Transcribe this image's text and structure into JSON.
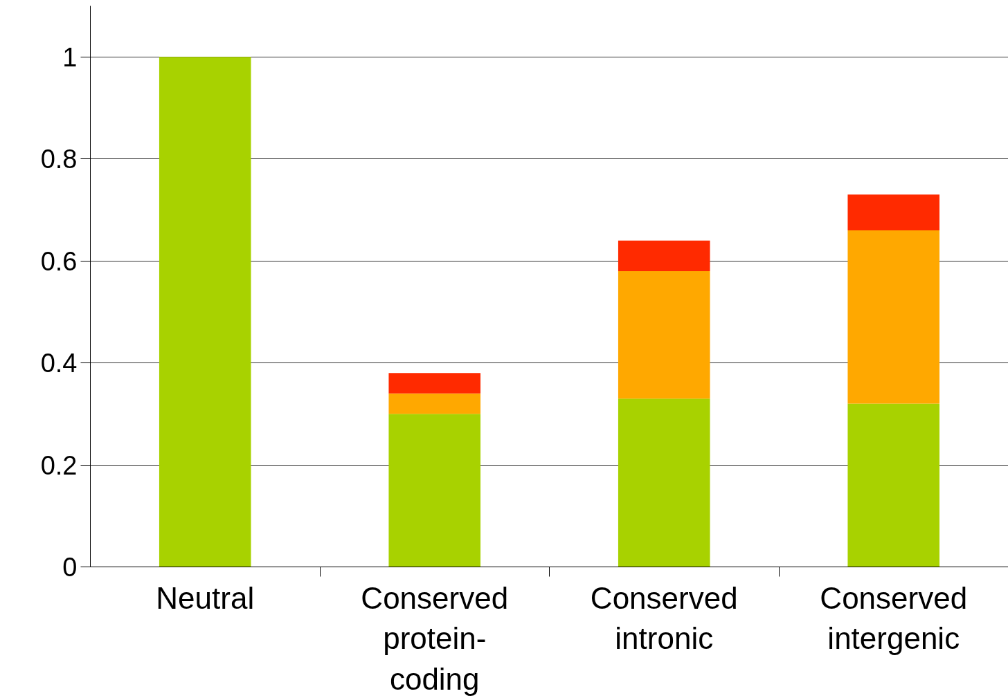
{
  "chart_data": {
    "type": "bar",
    "stacked": true,
    "categories": [
      "Neutral",
      "Conserved protein-coding",
      "Conserved intronic",
      "Conserved intergenic"
    ],
    "series": [
      {
        "color": "#a8d200",
        "values": [
          1.0,
          0.3,
          0.33,
          0.32
        ]
      },
      {
        "color": "#ffa800",
        "values": [
          0,
          0.04,
          0.25,
          0.34
        ]
      },
      {
        "color": "#ff2a00",
        "values": [
          0,
          0.04,
          0.06,
          0.07
        ]
      }
    ],
    "ylim": [
      0,
      1.1
    ],
    "yticks": [
      0,
      0.2,
      0.4,
      0.6,
      0.8,
      1
    ],
    "grid": "y"
  }
}
